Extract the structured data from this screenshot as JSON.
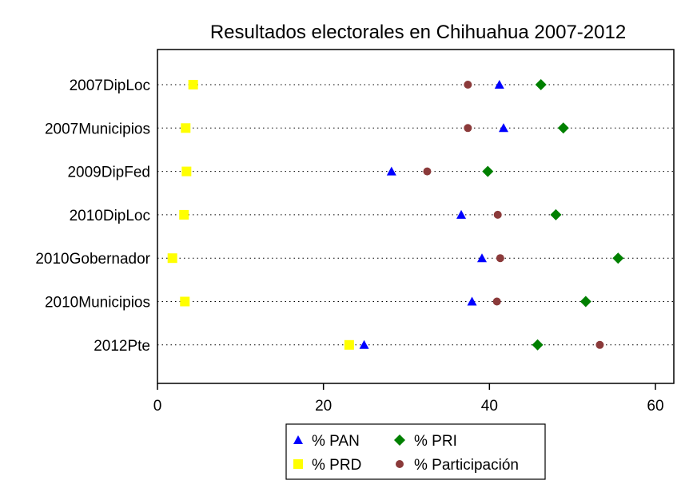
{
  "chart_data": {
    "type": "dot",
    "title": "Resultados electorales en Chihuahua 2007-2012",
    "xlabel": "",
    "ylabel": "",
    "xlim": [
      0,
      62
    ],
    "xticks": [
      0,
      20,
      40,
      60
    ],
    "xtick_labels": [
      "0",
      "20",
      "40",
      "60"
    ],
    "categories": [
      "2007DipLoc",
      "2007Municipios",
      "2009DipFed",
      "2010DipLoc",
      "2010Gobernador",
      "2010Municipios",
      "2012Pte"
    ],
    "grid": "dotted horizontal lines per category",
    "legend_position": "bottom",
    "series": [
      {
        "name": "% PAN",
        "marker": "triangle",
        "color": "#0000ff",
        "values": [
          41.2,
          41.7,
          28.2,
          36.6,
          39.1,
          37.9,
          24.9
        ]
      },
      {
        "name": "% PRI",
        "marker": "diamond",
        "color": "#008000",
        "values": [
          46.2,
          48.9,
          39.8,
          48.0,
          55.5,
          51.6,
          45.8
        ]
      },
      {
        "name": "% PRD",
        "marker": "square",
        "color": "#ffff00",
        "values": [
          4.3,
          3.4,
          3.5,
          3.2,
          1.8,
          3.3,
          23.1
        ]
      },
      {
        "name": "% Participación",
        "marker": "circle",
        "color": "#8b3a3a",
        "values": [
          37.4,
          37.4,
          32.5,
          41.0,
          41.3,
          40.9,
          53.3
        ]
      }
    ]
  }
}
